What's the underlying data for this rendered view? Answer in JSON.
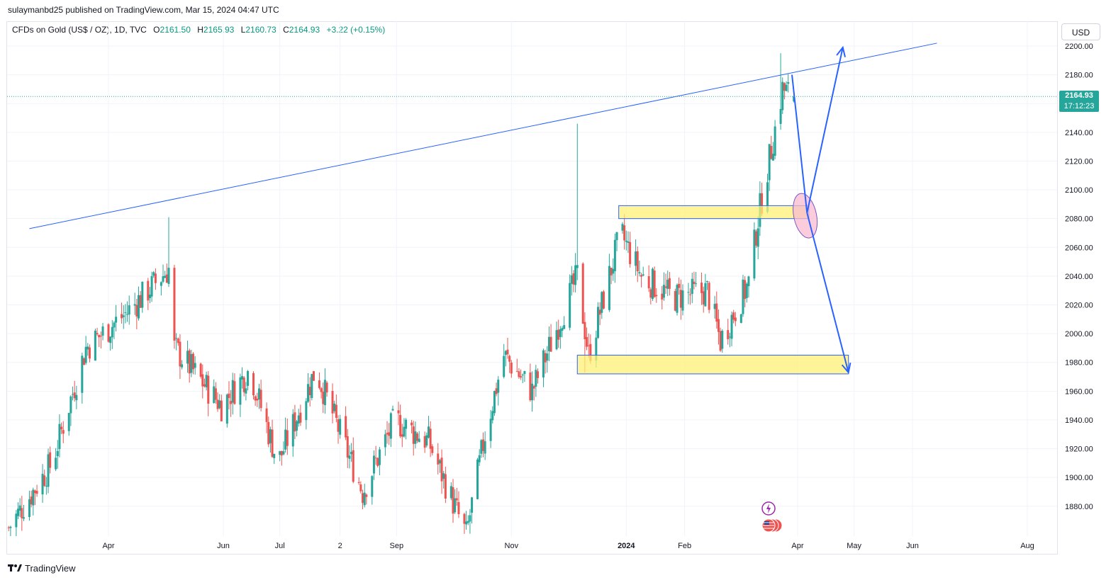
{
  "header": {
    "publisher": "sulaymanbd25 published on TradingView.com, Mar 15, 2024 04:47 UTC"
  },
  "legend": {
    "symbol": "CFDs on Gold (US$ / OZ), 1D, TVC",
    "o_label": "O",
    "o_value": "2161.50",
    "h_label": "H",
    "h_value": "2165.93",
    "l_label": "L",
    "l_value": "2160.73",
    "c_label": "C",
    "c_value": "2164.93",
    "change": "+3.22 (+0.15%)"
  },
  "currency_button": "USD",
  "last_price": {
    "value": "2164.93",
    "countdown": "17:12:23"
  },
  "footer": {
    "brand": "TradingView"
  },
  "colors": {
    "up": "#26a69a",
    "down": "#ef5350",
    "drawing": "#2962ff",
    "zone_fill": "#fff176",
    "ellipse_fill": "#f8bbd0",
    "price_label": "#26a69a"
  },
  "icons": [
    "lightning-event-icon",
    "us-flag-event-icon",
    "tradingview-logo-icon"
  ],
  "chart_data": {
    "type": "candlestick",
    "symbol": "CFDs on Gold (US$ / OZ)",
    "interval": "1D",
    "y_axis": {
      "ticks": [
        1880,
        1900,
        1920,
        1940,
        1960,
        1980,
        2000,
        2020,
        2040,
        2060,
        2080,
        2100,
        2120,
        2140,
        2160,
        2180,
        2200
      ],
      "tick_labels": [
        "1880.00",
        "1900.00",
        "1920.00",
        "1940.00",
        "1960.00",
        "1980.00",
        "2000.00",
        "2020.00",
        "2040.00",
        "2060.00",
        "2080.00",
        "2100.00",
        "2120.00",
        "2140.00",
        "2160.00",
        "2180.00",
        "2200.00"
      ],
      "ylim": [
        1857,
        2206
      ]
    },
    "x_axis": {
      "labels": [
        "Apr",
        "Jun",
        "Jul",
        "2",
        "Sep",
        "Nov",
        "2024",
        "Feb",
        "Apr",
        "May",
        "Jun",
        "Aug"
      ],
      "label_days": [
        0,
        61,
        91,
        123,
        153,
        214,
        275,
        306,
        366,
        396,
        427,
        488
      ],
      "xlim_days": [
        -53,
        495
      ]
    },
    "keypoints": [
      {
        "day": -53,
        "price": 1865
      },
      {
        "day": -30,
        "price": 1910
      },
      {
        "day": -12,
        "price": 1990
      },
      {
        "day": 10,
        "price": 2015
      },
      {
        "day": 32,
        "price": 2045
      },
      {
        "day": 35,
        "price": 1990
      },
      {
        "day": 60,
        "price": 1950
      },
      {
        "day": 75,
        "price": 1975
      },
      {
        "day": 90,
        "price": 1910
      },
      {
        "day": 110,
        "price": 1975
      },
      {
        "day": 135,
        "price": 1890
      },
      {
        "day": 152,
        "price": 1940
      },
      {
        "day": 170,
        "price": 1925
      },
      {
        "day": 190,
        "price": 1860
      },
      {
        "day": 200,
        "price": 1930
      },
      {
        "day": 210,
        "price": 1985
      },
      {
        "day": 225,
        "price": 1960
      },
      {
        "day": 240,
        "price": 2010
      },
      {
        "day": 249,
        "price": 2040
      },
      {
        "day": 255,
        "price": 1985
      },
      {
        "day": 272,
        "price": 2070
      },
      {
        "day": 283,
        "price": 2040
      },
      {
        "day": 300,
        "price": 2025
      },
      {
        "day": 318,
        "price": 2030
      },
      {
        "day": 325,
        "price": 1995
      },
      {
        "day": 340,
        "price": 2035
      },
      {
        "day": 345,
        "price": 2080
      },
      {
        "day": 358,
        "price": 2170
      },
      {
        "day": 364,
        "price": 2165
      }
    ],
    "wick_overrides": [
      {
        "day": 32,
        "high": 2081
      },
      {
        "day": 249,
        "high": 2146
      },
      {
        "day": 253,
        "low": 1973
      },
      {
        "day": 357,
        "high": 2195
      }
    ],
    "last": {
      "open": 2161.5,
      "high": 2165.93,
      "low": 2160.73,
      "close": 2164.93
    },
    "annotations": {
      "trendline": [
        {
          "day": -42,
          "price": 2073
        },
        {
          "day": 440,
          "price": 2202
        }
      ],
      "zone_upper": {
        "day_start": 271,
        "day_end": 372,
        "price_low": 2080,
        "price_high": 2089
      },
      "zone_lower": {
        "day_start": 249,
        "day_end": 393,
        "price_low": 1972,
        "price_high": 1985
      },
      "ellipse": {
        "day": 370,
        "price": 2082
      },
      "path_arrows": [
        [
          {
            "day": 363,
            "price": 2180
          },
          {
            "day": 371,
            "price": 2084
          },
          {
            "day": 390,
            "price": 2199
          }
        ],
        [
          {
            "day": 371,
            "price": 2084
          },
          {
            "day": 393,
            "price": 1973
          }
        ]
      ]
    }
  }
}
